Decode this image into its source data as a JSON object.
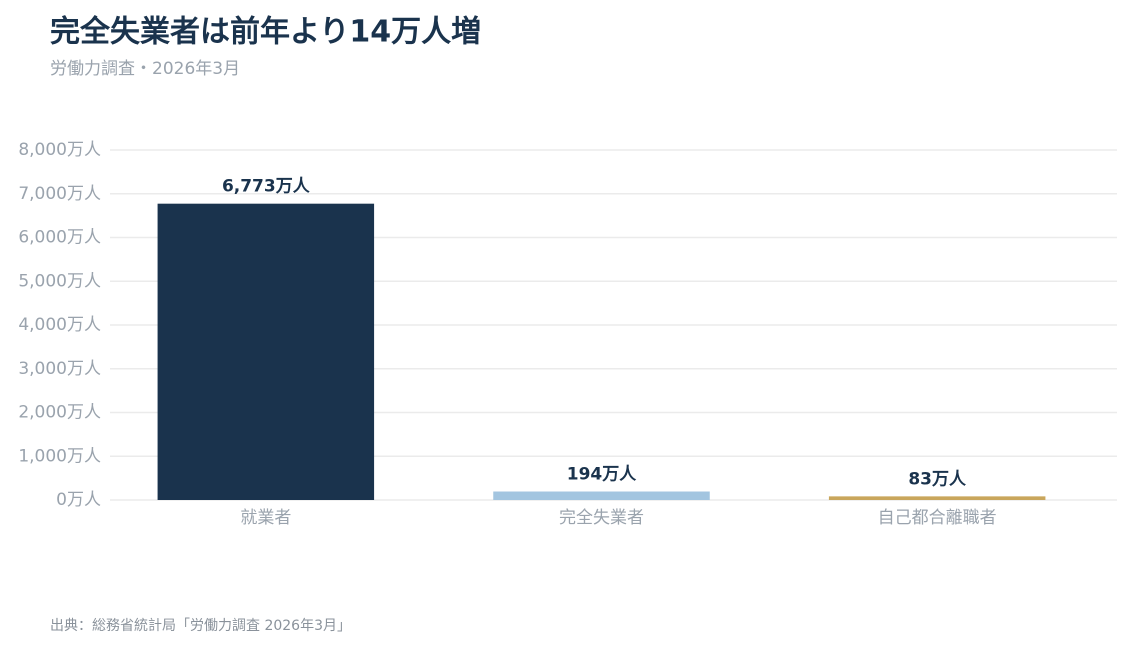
{
  "chart_data": {
    "type": "bar",
    "title": "完全失業者は前年より14万人増",
    "subtitle": "労働力調査・2026年3月",
    "source": "出典：総務省統計局「労働力調査 2026年3月」",
    "categories": [
      "就業者",
      "完全失業者",
      "自己都合離職者"
    ],
    "values": [
      6773,
      194,
      83
    ],
    "value_labels": [
      "6,773万人",
      "194万人",
      "83万人"
    ],
    "colors": [
      "#1a334d",
      "#a3c5e0",
      "#c9a65c"
    ],
    "ylim": [
      0,
      8000
    ],
    "yticks": [
      {
        "value": 0,
        "label": "0万人"
      },
      {
        "value": 1000,
        "label": "1,000万人"
      },
      {
        "value": 2000,
        "label": "2,000万人"
      },
      {
        "value": 3000,
        "label": "3,000万人"
      },
      {
        "value": 4000,
        "label": "4,000万人"
      },
      {
        "value": 5000,
        "label": "5,000万人"
      },
      {
        "value": 6000,
        "label": "6,000万人"
      },
      {
        "value": 7000,
        "label": "7,000万人"
      },
      {
        "value": 8000,
        "label": "8,000万人"
      }
    ],
    "grid": true
  }
}
